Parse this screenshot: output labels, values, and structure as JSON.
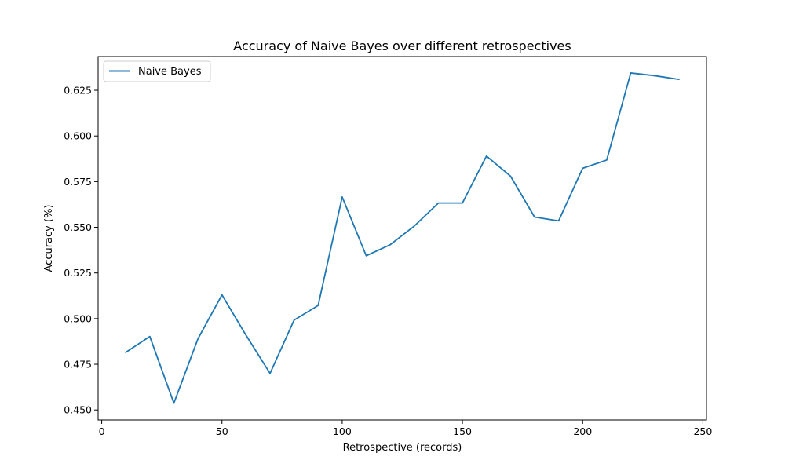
{
  "chart_data": {
    "type": "line",
    "title": "Accuracy of Naive Bayes over different retrospectives",
    "xlabel": "Retrospective (records)",
    "ylabel": "Accuracy (%)",
    "xlim": [
      -1.5,
      251.5
    ],
    "ylim": [
      0.4445,
      0.6435
    ],
    "xticks": [
      0,
      50,
      100,
      150,
      200,
      250
    ],
    "yticks": [
      0.45,
      0.475,
      0.5,
      0.525,
      0.55,
      0.575,
      0.6,
      0.625
    ],
    "grid": false,
    "legend": "top-left",
    "series": [
      {
        "name": "Naive Bayes",
        "color": "#1f77b4",
        "x": [
          10,
          20,
          30,
          40,
          50,
          60,
          70,
          80,
          90,
          100,
          110,
          120,
          130,
          140,
          150,
          160,
          170,
          180,
          190,
          200,
          210,
          220,
          230,
          240
        ],
        "y": [
          0.4815,
          0.4902,
          0.4537,
          0.4889,
          0.513,
          0.4909,
          0.47,
          0.4992,
          0.5072,
          0.5666,
          0.5344,
          0.5405,
          0.5507,
          0.5633,
          0.5633,
          0.589,
          0.578,
          0.5556,
          0.5535,
          0.5823,
          0.5868,
          0.6345,
          0.633,
          0.631
        ]
      }
    ]
  }
}
